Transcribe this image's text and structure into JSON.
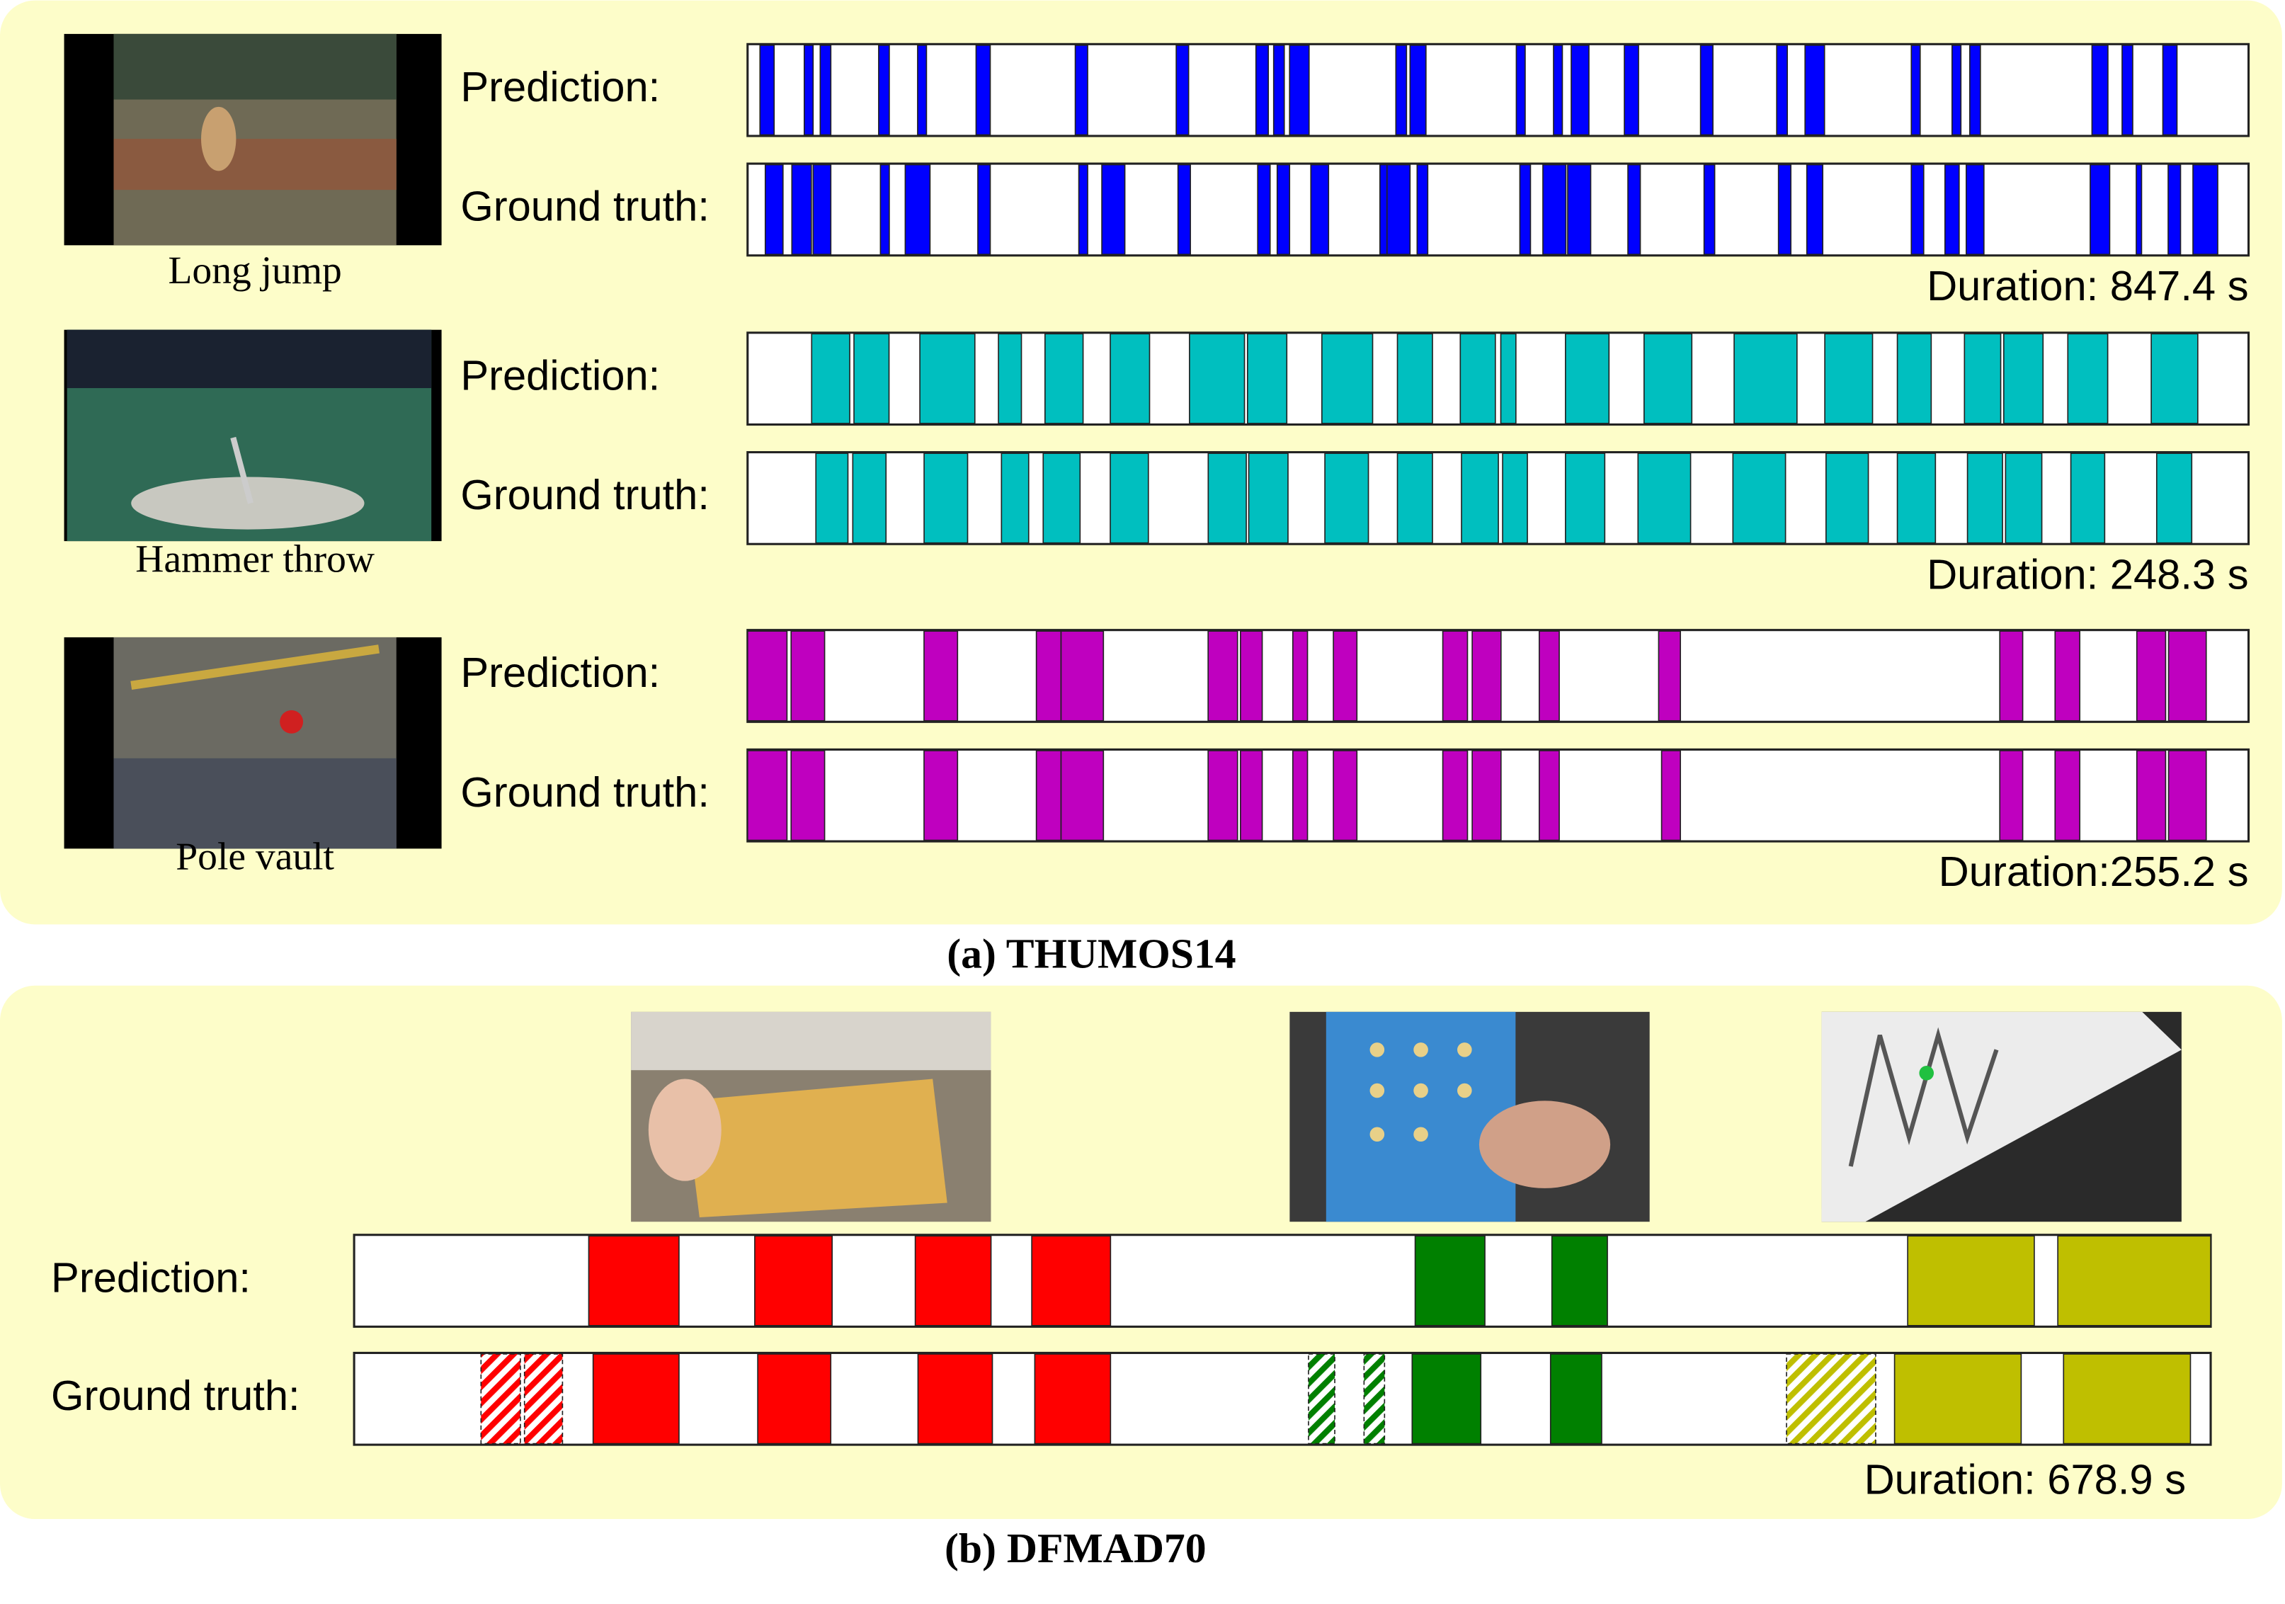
{
  "panels": [
    {
      "caption": "(a) THUMOS14",
      "rows": [
        {
          "label": "Long jump",
          "duration": 847.4,
          "duration_label": "Duration: 847.4 s",
          "tracks": [
            {
              "name": "Prediction:",
              "groups": [
                {
                  "color": "#0000ff",
                  "segments": [
                    [
                      7,
                      15
                    ],
                    [
                      32,
                      37
                    ],
                    [
                      41,
                      47
                    ],
                    [
                      74,
                      80
                    ],
                    [
                      96,
                      101
                    ],
                    [
                      129,
                      137
                    ],
                    [
                      185,
                      192
                    ],
                    [
                      242,
                      249
                    ],
                    [
                      287,
                      294
                    ],
                    [
                      297,
                      303
                    ],
                    [
                      306,
                      317
                    ],
                    [
                      366,
                      372
                    ],
                    [
                      374,
                      383
                    ],
                    [
                      434,
                      439
                    ],
                    [
                      455,
                      460
                    ],
                    [
                      465,
                      475
                    ],
                    [
                      495,
                      503
                    ],
                    [
                      538,
                      545
                    ],
                    [
                      581,
                      587
                    ],
                    [
                      597,
                      608
                    ],
                    [
                      657,
                      662
                    ],
                    [
                      680,
                      685
                    ],
                    [
                      690,
                      696
                    ],
                    [
                      759,
                      768
                    ],
                    [
                      776,
                      782
                    ],
                    [
                      799,
                      807
                    ]
                  ]
                }
              ]
            },
            {
              "name": "Ground truth:",
              "groups": [
                {
                  "color": "#0000ff",
                  "segments": [
                    [
                      10,
                      20
                    ],
                    [
                      25,
                      36
                    ],
                    [
                      37,
                      47
                    ],
                    [
                      75,
                      80
                    ],
                    [
                      89,
                      103
                    ],
                    [
                      130,
                      137
                    ],
                    [
                      187,
                      192
                    ],
                    [
                      200,
                      213
                    ],
                    [
                      243,
                      250
                    ],
                    [
                      288,
                      295
                    ],
                    [
                      299,
                      306
                    ],
                    [
                      318,
                      328
                    ],
                    [
                      357,
                      361
                    ],
                    [
                      361,
                      374
                    ],
                    [
                      378,
                      384
                    ],
                    [
                      436,
                      442
                    ],
                    [
                      449,
                      462
                    ],
                    [
                      463,
                      476
                    ],
                    [
                      497,
                      504
                    ],
                    [
                      540,
                      546
                    ],
                    [
                      582,
                      589
                    ],
                    [
                      598,
                      607
                    ],
                    [
                      657,
                      664
                    ],
                    [
                      676,
                      684
                    ],
                    [
                      688,
                      698
                    ],
                    [
                      758,
                      769
                    ],
                    [
                      784,
                      787
                    ],
                    [
                      802,
                      809
                    ],
                    [
                      816,
                      830
                    ]
                  ]
                }
              ]
            }
          ]
        },
        {
          "label": "Hammer throw",
          "duration": 248.3,
          "duration_label": "Duration: 248.3 s",
          "tracks": [
            {
              "name": "Prediction:",
              "groups": [
                {
                  "color": "#00bfbf",
                  "segments": [
                    [
                      10.6,
                      16.9
                    ],
                    [
                      17.6,
                      23.4
                    ],
                    [
                      28.5,
                      37.6
                    ],
                    [
                      41.5,
                      45.3
                    ],
                    [
                      49.2,
                      55.5
                    ],
                    [
                      60,
                      66.5
                    ],
                    [
                      73.1,
                      82.2
                    ],
                    [
                      82.7,
                      89.2
                    ],
                    [
                      95,
                      103.4
                    ],
                    [
                      107.5,
                      113.3
                    ],
                    [
                      117.9,
                      123.7
                    ],
                    [
                      124.6,
                      127.1
                    ],
                    [
                      135.3,
                      142.5
                    ],
                    [
                      148.3,
                      156.2
                    ],
                    [
                      163.2,
                      173.6
                    ],
                    [
                      178.2,
                      186.1
                    ],
                    [
                      190.2,
                      195.8
                    ],
                    [
                      201.3,
                      207.3
                    ],
                    [
                      207.8,
                      214.3
                    ],
                    [
                      218.4,
                      225
                    ],
                    [
                      232.2,
                      239.9
                    ]
                  ]
                }
              ]
            },
            {
              "name": "Ground truth:",
              "groups": [
                {
                  "color": "#00bfbf",
                  "segments": [
                    [
                      11.3,
                      16.6
                    ],
                    [
                      17.4,
                      22.9
                    ],
                    [
                      29.2,
                      36.4
                    ],
                    [
                      42,
                      46.5
                    ],
                    [
                      48.9,
                      55
                    ],
                    [
                      60,
                      66.3
                    ],
                    [
                      76.2,
                      82.5
                    ],
                    [
                      82.9,
                      89.4
                    ],
                    [
                      95.5,
                      102.7
                    ],
                    [
                      107.5,
                      113.3
                    ],
                    [
                      118.1,
                      124.2
                    ],
                    [
                      124.9,
                      129
                    ],
                    [
                      135.3,
                      141.8
                    ],
                    [
                      147.3,
                      156
                    ],
                    [
                      163,
                      171.7
                    ],
                    [
                      178.4,
                      185.4
                    ],
                    [
                      190.2,
                      196.5
                    ],
                    [
                      201.8,
                      207.6
                    ],
                    [
                      208.1,
                      214.1
                    ],
                    [
                      218.9,
                      224.5
                    ],
                    [
                      233.1,
                      238.9
                    ]
                  ]
                }
              ]
            }
          ]
        },
        {
          "label": "Pole vault",
          "duration": 255.2,
          "duration_label": "Duration:255.2 s",
          "tracks": [
            {
              "name": "Prediction:",
              "groups": [
                {
                  "color": "#bf00bf",
                  "segments": [
                    [
                      0,
                      6.7
                    ],
                    [
                      7.4,
                      13.1
                    ],
                    [
                      30,
                      35.7
                    ],
                    [
                      49.1,
                      53.3
                    ],
                    [
                      53.3,
                      60.5
                    ],
                    [
                      78.3,
                      83.3
                    ],
                    [
                      83.8,
                      87.5
                    ],
                    [
                      92.7,
                      95.2
                    ],
                    [
                      99.6,
                      103.6
                    ],
                    [
                      118.2,
                      122.4
                    ],
                    [
                      123.2,
                      128.1
                    ],
                    [
                      134.6,
                      138
                    ],
                    [
                      154.9,
                      158.6
                    ],
                    [
                      212.9,
                      216.8
                    ],
                    [
                      222.3,
                      226.5
                    ],
                    [
                      236.2,
                      241.1
                    ],
                    [
                      241.6,
                      248
                    ]
                  ]
                }
              ]
            },
            {
              "name": "Ground truth:",
              "groups": [
                {
                  "color": "#bf00bf",
                  "segments": [
                    [
                      0,
                      6.7
                    ],
                    [
                      7.4,
                      13.1
                    ],
                    [
                      30,
                      35.7
                    ],
                    [
                      49.1,
                      53.3
                    ],
                    [
                      53.3,
                      60.5
                    ],
                    [
                      78.3,
                      83.3
                    ],
                    [
                      83.8,
                      87.5
                    ],
                    [
                      92.7,
                      95.2
                    ],
                    [
                      99.6,
                      103.6
                    ],
                    [
                      118.2,
                      122.4
                    ],
                    [
                      123.2,
                      128.1
                    ],
                    [
                      134.6,
                      138
                    ],
                    [
                      155.4,
                      158.6
                    ],
                    [
                      212.9,
                      216.8
                    ],
                    [
                      222.3,
                      226.5
                    ],
                    [
                      236.2,
                      241.1
                    ],
                    [
                      241.6,
                      248
                    ]
                  ]
                }
              ]
            }
          ]
        }
      ]
    },
    {
      "caption": "(b) DFMAD70",
      "rows": [
        {
          "duration": 678.9,
          "duration_label": "Duration: 678.9 s",
          "tracks": [
            {
              "name": "Prediction:",
              "groups": [
                {
                  "color": "#ff0000",
                  "segments": [
                    [
                      85.8,
                      118.8
                    ],
                    [
                      146.5,
                      174.8
                    ],
                    [
                      205.2,
                      232.9
                    ],
                    [
                      247.8,
                      276.6
                    ]
                  ]
                },
                {
                  "color": "#008000",
                  "segments": [
                    [
                      388,
                      413.5
                    ],
                    [
                      438,
                      458.3
                    ]
                  ]
                },
                {
                  "color": "#bfbf00",
                  "segments": [
                    [
                      568.1,
                      614.4
                    ],
                    [
                      623,
                      678.9
                    ]
                  ]
                }
              ]
            },
            {
              "name": "Ground truth:",
              "groups": [
                {
                  "color": "#ff0000",
                  "hatched": true,
                  "segments": [
                    [
                      46.4,
                      60.8
                    ],
                    [
                      62.3,
                      76.2
                    ]
                  ]
                },
                {
                  "color": "#ff0000",
                  "segments": [
                    [
                      87.4,
                      118.8
                    ],
                    [
                      147.6,
                      174.3
                    ],
                    [
                      206.2,
                      233.4
                    ],
                    [
                      248.9,
                      276.6
                    ]
                  ]
                },
                {
                  "color": "#008000",
                  "hatched": true,
                  "segments": [
                    [
                      349,
                      358.6
                    ],
                    [
                      369.3,
                      376.8
                    ]
                  ]
                },
                {
                  "color": "#008000",
                  "segments": [
                    [
                      386.9,
                      412
                    ],
                    [
                      437.5,
                      456.2
                    ]
                  ]
                },
                {
                  "color": "#bfbf00",
                  "hatched": true,
                  "segments": [
                    [
                      523.8,
                      556.4
                    ]
                  ]
                },
                {
                  "color": "#bfbf00",
                  "segments": [
                    [
                      563.3,
                      609.6
                    ],
                    [
                      625.1,
                      671.5
                    ]
                  ]
                }
              ]
            }
          ]
        }
      ]
    }
  ]
}
